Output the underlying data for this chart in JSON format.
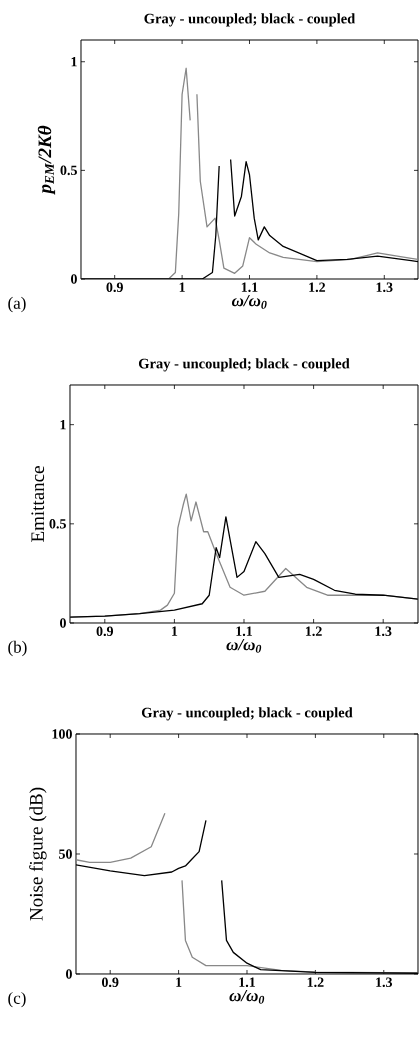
{
  "chart_data": [
    {
      "type": "line",
      "title": "Gray - uncoupled; black - coupled",
      "xlabel": "ω/ω$_{0}$",
      "ylabel": "p$_{EM}$/2Kθ",
      "annotations": [
        "(a)"
      ],
      "xlim": [
        0.85,
        1.35
      ],
      "ylim": [
        0,
        1.1
      ],
      "xticks": [
        0.9,
        1,
        1.1,
        1.2,
        1.3
      ],
      "yticks": [
        0,
        0.5,
        1
      ],
      "grid": false,
      "series": [
        {
          "color": "#888888",
          "x": [
            0.85,
            0.98,
            0.99,
            0.995,
            1.0,
            1.006,
            1.012,
            1.018,
            1.022,
            1.027,
            1.037,
            1.049,
            1.055,
            1.062,
            1.078,
            1.09,
            1.1,
            1.11,
            1.13,
            1.15,
            1.2,
            1.25,
            1.29,
            1.34,
            1.35
          ],
          "values": [
            0,
            0,
            0.03,
            0.3,
            0.85,
            0.97,
            0.73,
            null,
            0.85,
            0.45,
            0.24,
            0.28,
            0.18,
            0.05,
            0.026,
            0.06,
            0.19,
            0.16,
            0.12,
            0.1,
            0.08,
            0.09,
            0.12,
            0.095,
            0.09
          ]
        },
        {
          "color": "#000000",
          "x": [
            0.85,
            1.03,
            1.045,
            1.05,
            1.055,
            1.062,
            1.068,
            1.072,
            1.078,
            1.088,
            1.095,
            1.1,
            1.107,
            1.113,
            1.122,
            1.13,
            1.15,
            1.2,
            1.245,
            1.29,
            1.34,
            1.35
          ],
          "values": [
            0,
            0,
            0.03,
            0.2,
            0.52,
            null,
            null,
            0.55,
            0.29,
            0.38,
            0.54,
            0.48,
            0.28,
            0.18,
            0.24,
            0.2,
            0.15,
            0.085,
            0.09,
            0.105,
            0.085,
            0.08
          ]
        }
      ]
    },
    {
      "type": "line",
      "title": "Gray - uncoupled; black - coupled",
      "xlabel": "ω/ω$_{0}$",
      "ylabel": "Emittance",
      "annotations": [
        "(b)"
      ],
      "xlim": [
        0.85,
        1.35
      ],
      "ylim": [
        0,
        1.2
      ],
      "xticks": [
        0.9,
        1,
        1.1,
        1.2,
        1.3
      ],
      "yticks": [
        0,
        0.5,
        1
      ],
      "grid": false,
      "series": [
        {
          "color": "#888888",
          "x": [
            0.85,
            0.9,
            0.95,
            0.98,
            0.99,
            1.0,
            1.005,
            1.013,
            1.017,
            1.024,
            1.031,
            1.042,
            1.048,
            1.06,
            1.08,
            1.1,
            1.13,
            1.16,
            1.19,
            1.22,
            1.25,
            1.3,
            1.35
          ],
          "values": [
            0.03,
            0.035,
            0.047,
            0.065,
            0.09,
            0.15,
            0.48,
            0.6,
            0.65,
            0.515,
            0.61,
            0.46,
            0.46,
            0.35,
            0.18,
            0.14,
            0.16,
            0.275,
            0.18,
            0.14,
            0.14,
            0.14,
            0.12
          ]
        },
        {
          "color": "#000000",
          "x": [
            0.85,
            0.9,
            0.95,
            1.0,
            1.04,
            1.05,
            1.06,
            1.065,
            1.074,
            1.08,
            1.09,
            1.1,
            1.117,
            1.13,
            1.15,
            1.18,
            1.2,
            1.23,
            1.26,
            1.3,
            1.35
          ],
          "values": [
            0.03,
            0.035,
            0.047,
            0.065,
            0.097,
            0.14,
            0.38,
            0.33,
            0.535,
            0.42,
            0.23,
            0.26,
            0.41,
            0.35,
            0.23,
            0.245,
            0.22,
            0.165,
            0.145,
            0.14,
            0.12
          ]
        }
      ]
    },
    {
      "type": "line",
      "title": "Gray - uncoupled; black - coupled",
      "xlabel": "ω/ω$_{0}$",
      "ylabel": "Noise figure (dB)",
      "annotations": [
        "(c)"
      ],
      "xlim": [
        0.85,
        1.35
      ],
      "ylim": [
        0,
        100
      ],
      "xticks": [
        0.9,
        1,
        1.1,
        1.2,
        1.3
      ],
      "yticks": [
        0,
        50,
        100
      ],
      "grid": false,
      "series": [
        {
          "color": "#888888",
          "x": [
            0.85,
            0.87,
            0.9,
            0.93,
            0.96,
            0.98,
            0.995,
            1.002,
            1.005,
            1.01,
            1.02,
            1.04,
            1.1,
            1.15,
            1.2,
            1.35
          ],
          "values": [
            47.6,
            46.5,
            46.5,
            48.3,
            53,
            67,
            null,
            null,
            39,
            14,
            7,
            3.5,
            3.5,
            1.5,
            0.8,
            0.5
          ]
        },
        {
          "color": "#000000",
          "x": [
            0.85,
            0.9,
            0.95,
            0.99,
            1.0,
            1.01,
            1.02,
            1.03,
            1.04,
            1.05,
            1.057,
            1.063,
            1.07,
            1.08,
            1.1,
            1.12,
            1.2,
            1.35
          ],
          "values": [
            45.5,
            43,
            41,
            42.5,
            44,
            45,
            48,
            51,
            64,
            null,
            null,
            39,
            14,
            9,
            4.5,
            1.8,
            0.7,
            0.3
          ]
        }
      ]
    }
  ]
}
